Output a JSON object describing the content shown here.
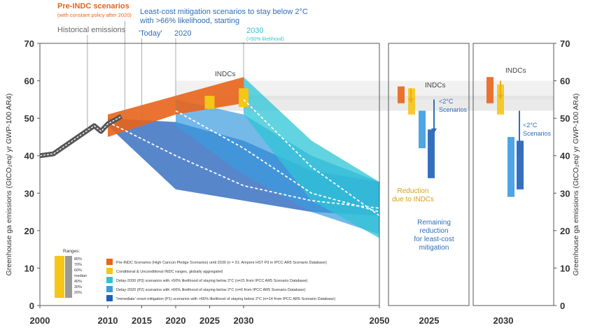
{
  "chart_data": {
    "type": "area",
    "panels": [
      "main",
      "2025",
      "2030"
    ],
    "ylim": [
      0,
      70
    ],
    "xlim": [
      2000,
      2050
    ],
    "ylabel_left": "Greenhouse ga emissions (GtCO₂eq/ yr GWP-100 AR4)",
    "ylabel_right": "Greenhouse ga emissions (GtCO₂eq/ yr GWP-100 AR4)",
    "y_ticks": [
      "0",
      "10",
      "20",
      "30",
      "40",
      "50",
      "60",
      "70"
    ],
    "x_ticks": [
      "2000",
      "2010",
      "2015",
      "2020",
      "2025",
      "2030",
      "2050"
    ],
    "panel_labels": [
      "2025",
      "2030"
    ],
    "annotations": {
      "pre_indc": "Pre-INDC scenarios",
      "pre_indc_sub": "(with constant policy after 2020)",
      "historical": "Historical emissions",
      "least_cost_1": "Least-cost mitigation scenarios to stay below 2°C",
      "least_cost_2": "with >66% likelihood, starting",
      "today": "'Today'",
      "y2020": "2020",
      "y2030": "2030",
      "y2030_sub": "(>50% likelihood)",
      "indcs_main": "INDCs",
      "indcs_2025": "INDCs",
      "indcs_2030": "INDCs",
      "below2c_1": "<2°C",
      "below2c_2": "Scenarios",
      "reduction_1": "Reduction",
      "reduction_2": "due to INDCs",
      "remaining_1": "Remaining",
      "remaining_2": "reduction",
      "remaining_3": "for least-cost",
      "remaining_4": "mitigation"
    },
    "ranges_key": {
      "title": "Ranges:",
      "labels": [
        "80%",
        "70%",
        "60%",
        "median",
        "40%",
        "30%",
        "20%"
      ]
    },
    "legend": [
      {
        "color": "#E8641B",
        "text": "Pre-INDC Scenarios (High Cancun Pledge Scenarios) until 2030 (n = 31; Ampere HST P3 in IPCC AR5 Scenario Database)"
      },
      {
        "color": "#F5C518",
        "text": "Conditional & Unconditional INDC ranges, globally aggregated"
      },
      {
        "color": "#2EC4D6",
        "text": "Delay-2030 (P3) scenarios with >50% likelihood of staying below 2°C (n=21 from IPCC AR5 Scenario Database)"
      },
      {
        "color": "#3A9BE0",
        "text": "Delay-2020 (P2) scenarios with >66% likelihood of staying below 2°C (n=6 from IPCC AR5 Scenario Database)"
      },
      {
        "color": "#1F5FB8",
        "text": "'Immediate' onset mitigation (P1) scenarios with >66% likelihood of staying below 2°C (n=14 from IPCC AR5 Scenario Database)"
      }
    ],
    "series": [
      {
        "name": "Historical emissions",
        "color": "#666666",
        "x": [
          2000,
          2002,
          2004,
          2006,
          2008,
          2009,
          2010,
          2011,
          2012
        ],
        "y": [
          40,
          40.5,
          43,
          45.5,
          48,
          46.5,
          48.5,
          49.5,
          50.5
        ]
      },
      {
        "name": "Pre-INDC Scenarios",
        "color": "#E8641B",
        "x": [
          2010,
          2020,
          2030
        ],
        "low": [
          45,
          51,
          54
        ],
        "high": [
          51,
          56,
          61
        ]
      },
      {
        "name": "Conditional & Unconditional INDC ranges",
        "color": "#F5C518",
        "x": [
          2025,
          2030
        ],
        "low": [
          52.5,
          53
        ],
        "high": [
          56,
          58
        ]
      },
      {
        "name": "Delay-2030 (P3)",
        "color": "#2EC4D6",
        "x": [
          2030,
          2040,
          2050
        ],
        "low": [
          51,
          28,
          18
        ],
        "high": [
          61,
          44,
          33
        ],
        "median": [
          55,
          37,
          24
        ]
      },
      {
        "name": "Delay-2020 (P2)",
        "color": "#3A9BE0",
        "x": [
          2020,
          2030,
          2040,
          2050
        ],
        "low": [
          48,
          35,
          25,
          19
        ],
        "high": [
          55,
          51,
          40,
          33
        ],
        "median": [
          52,
          42,
          30,
          25
        ]
      },
      {
        "name": "'Immediate' onset (P1)",
        "color": "#1F5FB8",
        "x": [
          2010,
          2020,
          2030,
          2040,
          2050
        ],
        "low": [
          48,
          31,
          28,
          25,
          24
        ],
        "high": [
          50,
          49,
          44,
          36,
          33
        ],
        "median": [
          49,
          40,
          32,
          28,
          26
        ]
      }
    ],
    "panel_2025": [
      {
        "name": "Pre-INDC",
        "color": "#E8641B",
        "low": 54,
        "high": 58.5
      },
      {
        "name": "INDC",
        "color": "#F5C518",
        "low": 51,
        "high": 58
      },
      {
        "name": "Delay-2020 (P2)",
        "color": "#3A9BE0",
        "low": 42,
        "high": 52
      },
      {
        "name": "Immediate (P1)",
        "color": "#1F5FB8",
        "low": 34,
        "high": 47
      }
    ],
    "panel_2030": [
      {
        "name": "Pre-INDC",
        "color": "#E8641B",
        "low": 54,
        "high": 61
      },
      {
        "name": "INDC",
        "color": "#F5C518",
        "low": 51,
        "high": 59
      },
      {
        "name": "Delay-2020 (P2)",
        "color": "#3A9BE0",
        "low": 29,
        "high": 45
      },
      {
        "name": "Immediate (P1)",
        "color": "#1F5FB8",
        "low": 31,
        "high": 44
      }
    ]
  }
}
